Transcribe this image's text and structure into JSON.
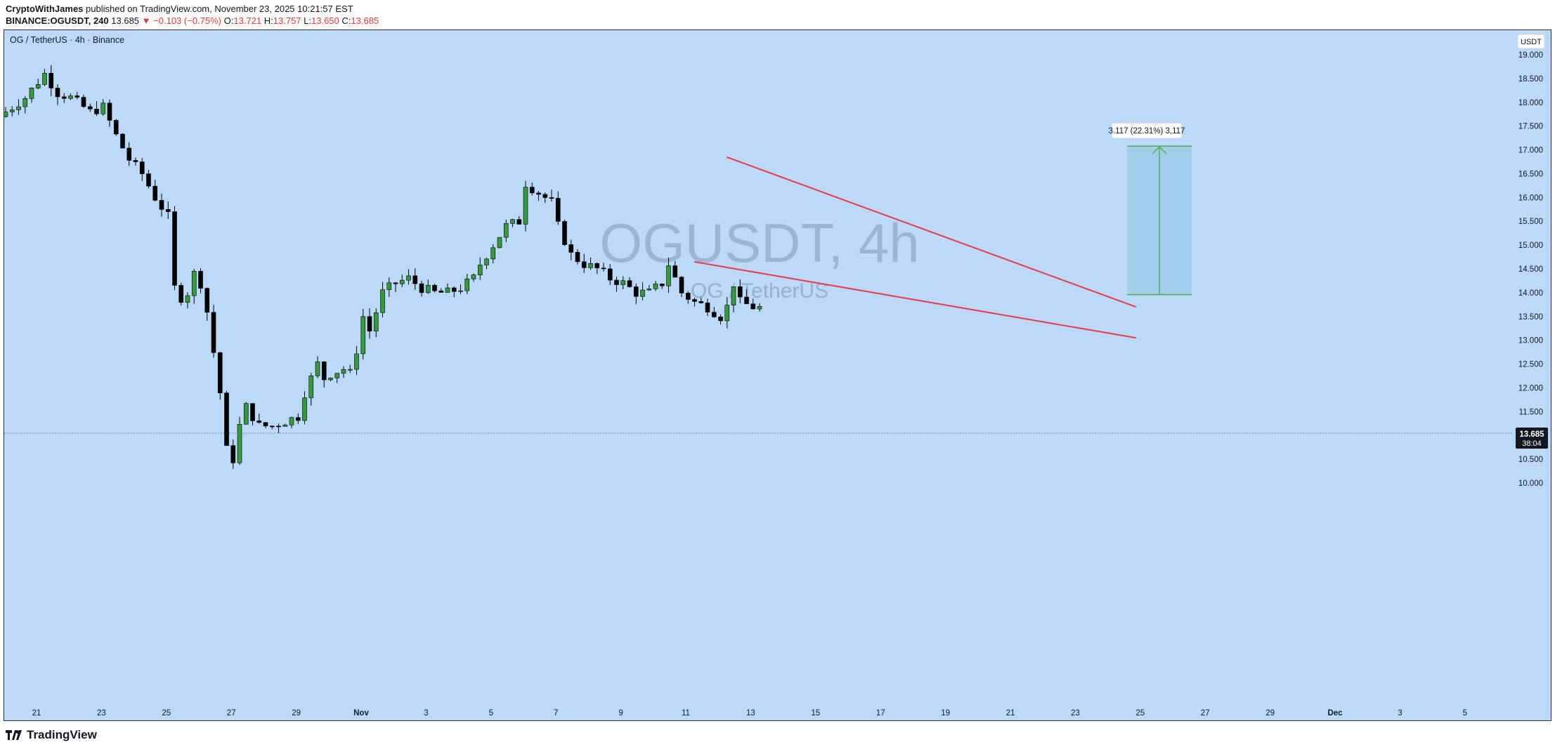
{
  "header": {
    "author": "CryptoWithJames",
    "published": "published on TradingView.com, November 23, 2025 10:21:57 EST",
    "symbol": "BINANCE:OGUSDT, 240",
    "last": "13.685",
    "change": "−0.103 (−0.75%)",
    "o_label": "O:",
    "o_val": "13.721",
    "h_label": "H:",
    "h_val": "13.757",
    "l_label": "L:",
    "l_val": "13.650",
    "c_label": "C:",
    "c_val": "13.685"
  },
  "chart": {
    "legend": "OG / TetherUS · 4h · Binance",
    "currency_button": "USDT",
    "watermark_main": "OGUSDT, 4h",
    "watermark_sub": "OG / TetherUS",
    "price_label": "13.685",
    "countdown": "38:04",
    "measure_label": "3.117 (22.31%) 3,117",
    "colors": {
      "background": "#bbdafa",
      "up": "#2e9d3a",
      "down": "#000000",
      "trendline": "#f23645",
      "target_box": "#9ccbe8",
      "target_line": "#4caf50"
    }
  },
  "footer": {
    "brand": "TradingView"
  },
  "chart_data": {
    "type": "candlestick",
    "symbol": "OGUSDT",
    "interval": "4h",
    "ylim": [
      9.8,
      19.5
    ],
    "y_ticks": [
      "19.000",
      "18.500",
      "18.000",
      "17.500",
      "17.000",
      "16.500",
      "16.000",
      "15.500",
      "15.000",
      "14.500",
      "14.000",
      "13.500",
      "13.000",
      "12.500",
      "12.000",
      "11.500",
      "11.000",
      "10.500",
      "10.000"
    ],
    "x_ticks": [
      "21",
      "23",
      "25",
      "27",
      "29",
      "Nov",
      "3",
      "5",
      "7",
      "9",
      "11",
      "13",
      "15",
      "17",
      "19",
      "21",
      "23",
      "25",
      "27",
      "29",
      "Dec",
      "3",
      "5"
    ],
    "close_path": [
      [
        0,
        17.8
      ],
      [
        3,
        18.1
      ],
      [
        6,
        18.6
      ],
      [
        8,
        18.2
      ],
      [
        10,
        18.1
      ],
      [
        13,
        17.8
      ],
      [
        15,
        17.9
      ],
      [
        17,
        17.3
      ],
      [
        19,
        16.8
      ],
      [
        21,
        16.5
      ],
      [
        23,
        16.0
      ],
      [
        25,
        15.6
      ],
      [
        26,
        14.1
      ],
      [
        27,
        13.9
      ],
      [
        28,
        14.0
      ],
      [
        29,
        14.4
      ],
      [
        30,
        14.2
      ],
      [
        31,
        13.6
      ],
      [
        33,
        11.9
      ],
      [
        34,
        10.7
      ],
      [
        35,
        10.5
      ],
      [
        36,
        11.2
      ],
      [
        37,
        11.6
      ],
      [
        38,
        11.4
      ],
      [
        39,
        11.2
      ],
      [
        41,
        11.2
      ],
      [
        43,
        11.3
      ],
      [
        45,
        11.4
      ],
      [
        46,
        11.9
      ],
      [
        48,
        12.5
      ],
      [
        49,
        12.2
      ],
      [
        50,
        12.3
      ],
      [
        52,
        12.4
      ],
      [
        53,
        12.3
      ],
      [
        54,
        12.8
      ],
      [
        55,
        13.5
      ],
      [
        56,
        13.2
      ],
      [
        57,
        13.6
      ],
      [
        58,
        14.0
      ],
      [
        60,
        14.2
      ],
      [
        62,
        14.3
      ],
      [
        64,
        14.1
      ],
      [
        66,
        14.0
      ],
      [
        68,
        14.0
      ],
      [
        70,
        14.1
      ],
      [
        72,
        14.3
      ],
      [
        73,
        14.6
      ],
      [
        75,
        15.0
      ],
      [
        77,
        15.4
      ],
      [
        79,
        15.5
      ],
      [
        80,
        16.3
      ],
      [
        81,
        16.2
      ],
      [
        83,
        16.0
      ],
      [
        84,
        15.9
      ],
      [
        85,
        15.4
      ],
      [
        86,
        15.1
      ],
      [
        87,
        14.8
      ],
      [
        89,
        14.6
      ],
      [
        91,
        14.5
      ],
      [
        93,
        14.3
      ],
      [
        95,
        14.2
      ],
      [
        97,
        14.0
      ],
      [
        99,
        14.0
      ],
      [
        101,
        14.2
      ],
      [
        102,
        14.6
      ],
      [
        104,
        14.0
      ],
      [
        106,
        13.8
      ],
      [
        108,
        13.7
      ],
      [
        109,
        13.6
      ],
      [
        110,
        13.5
      ],
      [
        111,
        13.7
      ],
      [
        112,
        14.2
      ],
      [
        113,
        13.8
      ],
      [
        115,
        13.7
      ],
      [
        116,
        13.685
      ]
    ],
    "trendline_upper": {
      "from": [
        "Nov 11",
        16.85
      ],
      "to": [
        "Nov 24",
        13.7
      ]
    },
    "trendline_lower": {
      "from": [
        "Nov 10",
        14.65
      ],
      "to": [
        "Nov 24",
        13.05
      ]
    },
    "measure": {
      "from": 13.96,
      "to": 17.08,
      "change": 3.117,
      "percent": 22.31
    },
    "last_price": 13.685
  }
}
